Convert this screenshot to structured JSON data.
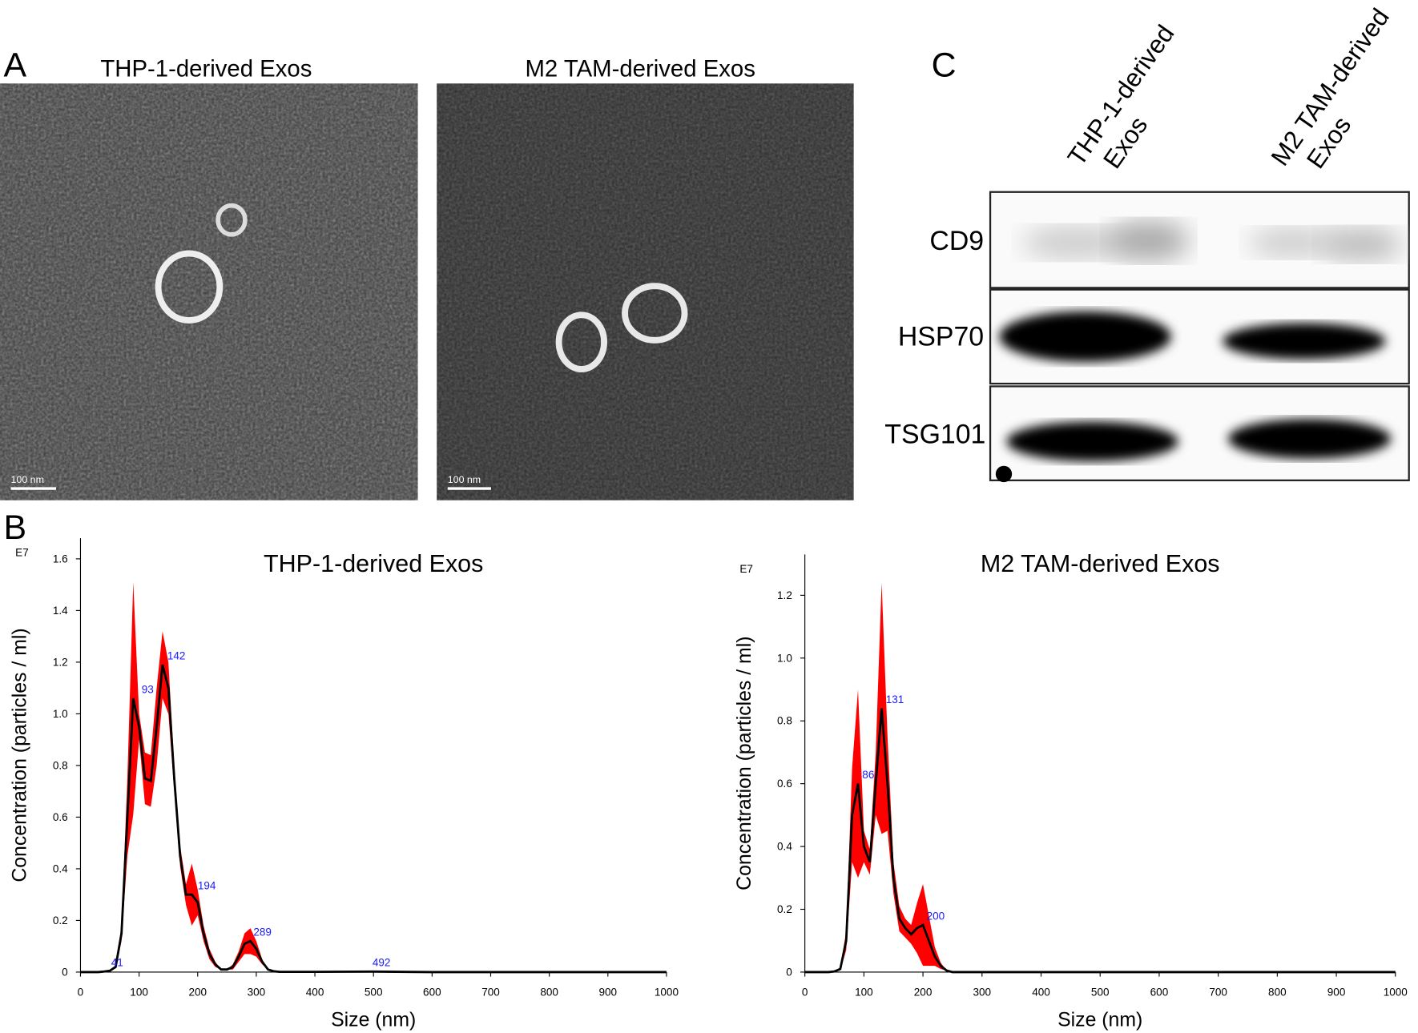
{
  "panel_labels": [
    "A",
    "B",
    "C"
  ],
  "tem_images": [
    {
      "title": "THP-1-derived Exos",
      "scale_bar": "100 nm"
    },
    {
      "title": "M2 TAM-derived Exos",
      "scale_bar": "100 nm"
    }
  ],
  "western_blot": {
    "lanes": [
      [
        "THP-1-derived",
        "Exos"
      ],
      [
        "M2 TAM-derived",
        "Exos"
      ]
    ],
    "proteins": [
      "CD9",
      "HSP70",
      "TSG101"
    ]
  },
  "chart_data": [
    {
      "type": "line",
      "title": "THP-1-derived Exos",
      "x_label": "Size (nm)",
      "y_label": "Concentration (particles / ml)",
      "y_unit": "E7",
      "band_color": "#ff0000",
      "annotation_color": "#1a1aff",
      "x": [
        0,
        10,
        20,
        30,
        40,
        50,
        60,
        70,
        80,
        90,
        100,
        110,
        120,
        130,
        140,
        150,
        160,
        170,
        180,
        190,
        200,
        210,
        220,
        230,
        240,
        250,
        260,
        270,
        280,
        290,
        300,
        310,
        320,
        330,
        340,
        400,
        500,
        600,
        700,
        800,
        900,
        1000
      ],
      "series": [
        {
          "color": "#000000",
          "values": [
            0,
            0,
            0,
            0,
            0.002,
            0.005,
            0.02,
            0.15,
            0.6,
            1.06,
            0.95,
            0.75,
            0.74,
            0.95,
            1.19,
            1.1,
            0.75,
            0.45,
            0.3,
            0.3,
            0.27,
            0.15,
            0.07,
            0.03,
            0.01,
            0.01,
            0.02,
            0.06,
            0.11,
            0.12,
            0.09,
            0.04,
            0.01,
            0.003,
            0.001,
            0.001,
            0.002,
            0,
            0,
            0,
            0,
            0
          ],
          "errors": [
            0,
            0,
            0,
            0,
            0,
            0,
            0.005,
            0.03,
            0.15,
            0.45,
            0.05,
            0.1,
            0.1,
            0.15,
            0.13,
            0.1,
            0.05,
            0.04,
            0.04,
            0.12,
            0.05,
            0.03,
            0.02,
            0.01,
            0,
            0,
            0.01,
            0.02,
            0.04,
            0.05,
            0.03,
            0.01,
            0,
            0,
            0,
            0,
            0,
            0,
            0,
            0,
            0,
            0
          ]
        }
      ],
      "annotations": [
        41,
        93,
        142,
        194,
        289,
        492
      ],
      "xlim": [
        0,
        1000
      ],
      "ylim": [
        0,
        1.68
      ],
      "xticks": [
        0,
        100,
        200,
        300,
        400,
        500,
        600,
        700,
        800,
        900,
        1000
      ],
      "yticks": [
        0,
        0.2,
        0.4,
        0.6,
        0.8,
        {
          "value": 1,
          "label": "1.0"
        },
        1.2,
        1.4,
        1.6
      ]
    },
    {
      "type": "line",
      "title": "M2 TAM-derived Exos",
      "x_label": "Size (nm)",
      "y_label": "Concentration (particles / ml)",
      "y_unit": "E7",
      "band_color": "#ff0000",
      "annotation_color": "#1a1aff",
      "x": [
        0,
        10,
        20,
        30,
        40,
        50,
        60,
        70,
        80,
        90,
        100,
        110,
        120,
        130,
        140,
        150,
        160,
        170,
        180,
        190,
        200,
        210,
        220,
        230,
        240,
        250,
        300,
        400,
        500,
        600,
        700,
        800,
        900,
        1000
      ],
      "series": [
        {
          "color": "#000000",
          "values": [
            0,
            0,
            0,
            0,
            0,
            0.002,
            0.01,
            0.1,
            0.5,
            0.6,
            0.4,
            0.35,
            0.6,
            0.84,
            0.6,
            0.3,
            0.17,
            0.14,
            0.12,
            0.14,
            0.15,
            0.1,
            0.05,
            0.02,
            0.005,
            0,
            0,
            0,
            0,
            0,
            0,
            0,
            0,
            0
          ],
          "errors": [
            0,
            0,
            0,
            0,
            0,
            0,
            0.005,
            0.03,
            0.15,
            0.3,
            0.05,
            0.04,
            0.1,
            0.4,
            0.15,
            0.05,
            0.04,
            0.03,
            0.03,
            0.08,
            0.13,
            0.08,
            0.03,
            0.01,
            0,
            0,
            0,
            0,
            0,
            0,
            0,
            0,
            0,
            0
          ]
        }
      ],
      "annotations": [
        86,
        131,
        200
      ],
      "xlim": [
        0,
        1000
      ],
      "ylim": [
        0,
        1.33
      ],
      "xticks": [
        0,
        100,
        200,
        300,
        400,
        500,
        600,
        700,
        800,
        900,
        1000
      ],
      "yticks": [
        0,
        0.2,
        0.4,
        0.6,
        0.8,
        {
          "value": 1,
          "label": "1.0"
        },
        1.2
      ]
    }
  ]
}
